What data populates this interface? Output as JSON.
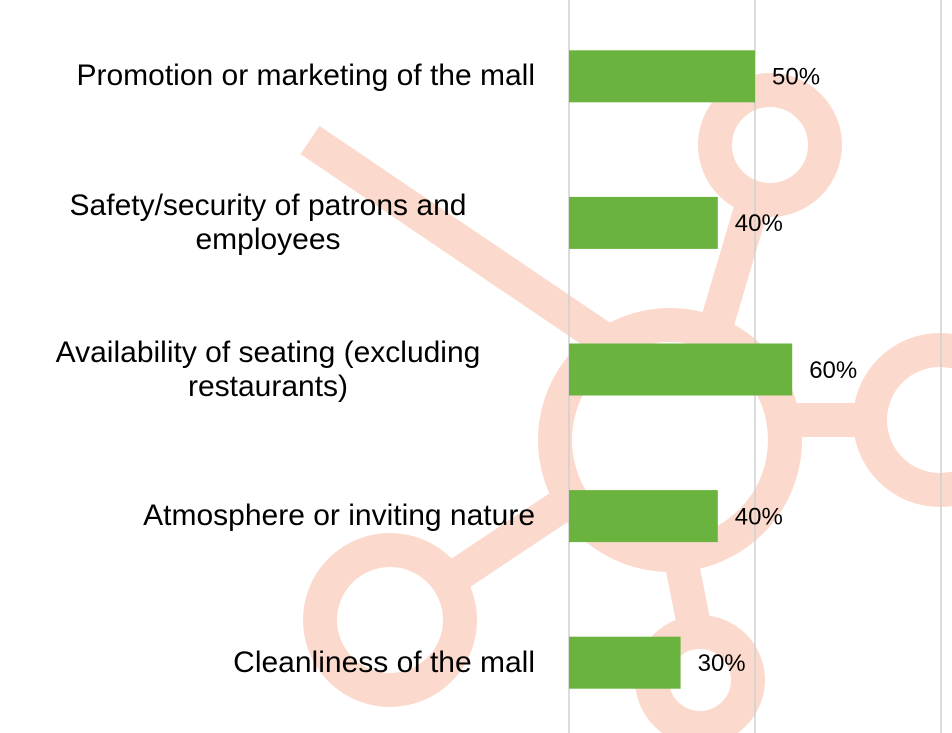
{
  "chart_data": {
    "type": "barh",
    "categories": [
      "Promotion or marketing of the mall",
      "Safety/security of patrons and employees",
      "Availability of seating (excluding restaurants)",
      "Atmosphere or inviting nature",
      "Cleanliness of the mall"
    ],
    "values": [
      50,
      40,
      60,
      40,
      30
    ],
    "value_labels": [
      "50%",
      "40%",
      "60%",
      "40%",
      "30%"
    ],
    "color": "#6ab33e",
    "xlim": [
      0,
      100
    ],
    "xticks": [
      0,
      50,
      100
    ],
    "grid": true
  }
}
